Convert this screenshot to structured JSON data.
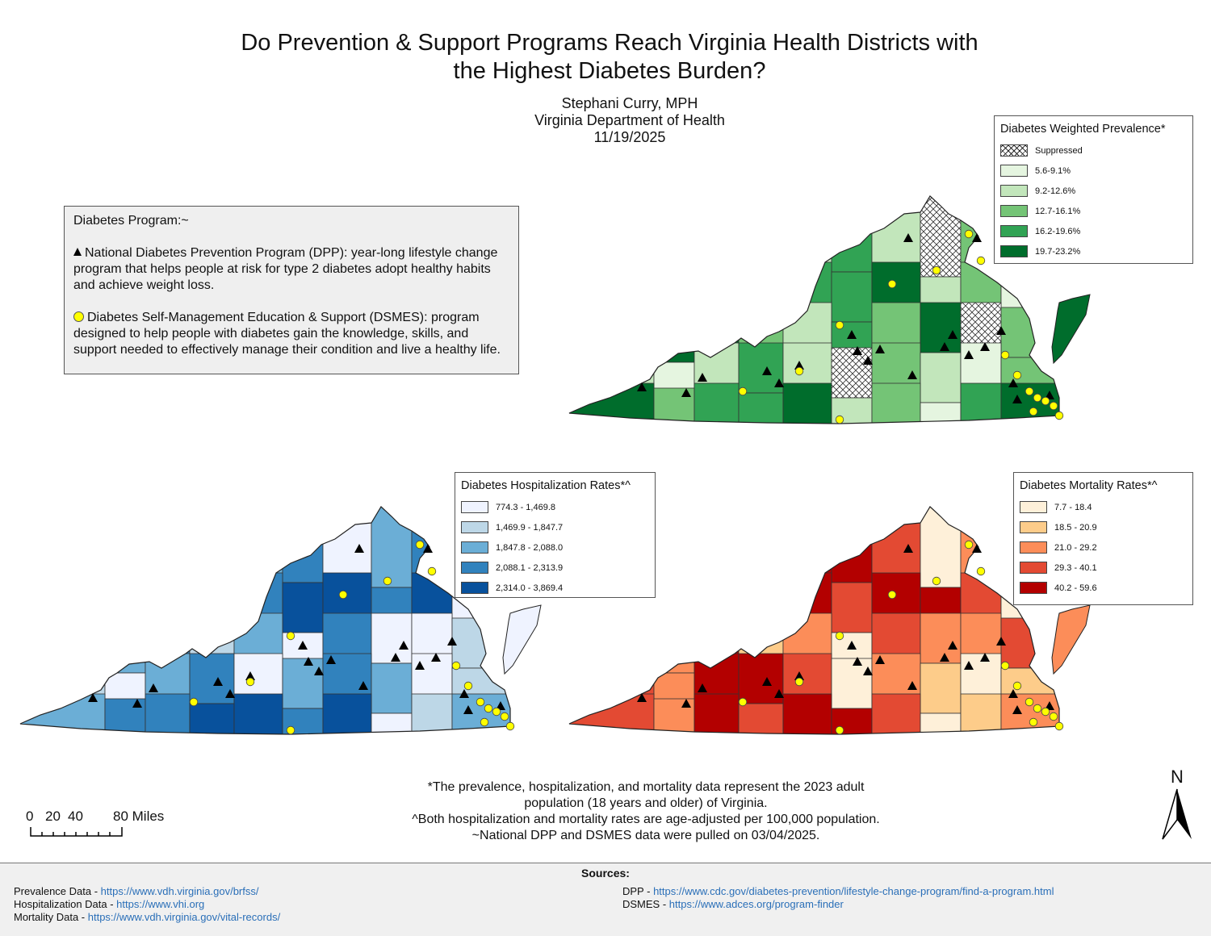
{
  "title": {
    "line1": "Do Prevention & Support Programs Reach Virginia Health Districts with",
    "line2": "the Highest Diabetes Burden?"
  },
  "author": {
    "name": "Stephani Curry, MPH",
    "org": "Virginia Department of Health",
    "date": "11/19/2025"
  },
  "program_box": {
    "title": "Diabetes Program:~",
    "dpp": "National Diabetes Prevention Program (DPP): year-long lifestyle change program that helps people at risk for type 2 diabetes adopt healthy habits and achieve weight loss.",
    "dsmes": "Diabetes Self-Management Education & Support (DSMES): program designed to help people with diabetes gain the knowledge, skills, and support needed to effectively manage their condition and live a healthy life."
  },
  "legends": {
    "prevalence": {
      "title": "Diabetes Weighted Prevalence*",
      "items": [
        {
          "label": "Suppressed",
          "color": "hatch"
        },
        {
          "label": "5.6-9.1%",
          "color": "#e5f5e0"
        },
        {
          "label": "9.2-12.6%",
          "color": "#c2e6bb"
        },
        {
          "label": "12.7-16.1%",
          "color": "#74c476"
        },
        {
          "label": "16.2-19.6%",
          "color": "#31a354"
        },
        {
          "label": "19.7-23.2%",
          "color": "#006d2c"
        }
      ]
    },
    "hospitalization": {
      "title": "Diabetes Hospitalization Rates*^",
      "items": [
        {
          "label": "774.3 - 1,469.8",
          "color": "#eff3ff"
        },
        {
          "label": "1,469.9 - 1,847.7",
          "color": "#bdd7e7"
        },
        {
          "label": "1,847.8 - 2,088.0",
          "color": "#6baed6"
        },
        {
          "label": "2,088.1 - 2,313.9",
          "color": "#3182bd"
        },
        {
          "label": "2,314.0 - 3,869.4",
          "color": "#08519c"
        }
      ]
    },
    "mortality": {
      "title": "Diabetes Mortality Rates*^",
      "items": [
        {
          "label": "7.7 - 18.4",
          "color": "#fef0d9"
        },
        {
          "label": "18.5 - 20.9",
          "color": "#fdcc8a"
        },
        {
          "label": "21.0 - 29.2",
          "color": "#fc8d59"
        },
        {
          "label": "29.3 - 40.1",
          "color": "#e34a33"
        },
        {
          "label": "40.2 - 59.6",
          "color": "#b30000"
        }
      ]
    }
  },
  "footnotes": {
    "line1": "*The prevalence, hospitalization, and mortality data represent the 2023 adult",
    "line2": "population (18 years and older) of Virginia.",
    "line3": "^Both hospitalization and mortality rates are age-adjusted per 100,000 population.",
    "line4": "~National DPP and DSMES data were pulled on 03/04/2025."
  },
  "scale": {
    "ticks": [
      "0",
      "20",
      "40",
      "80 Miles"
    ]
  },
  "north": {
    "label": "N"
  },
  "sources": {
    "heading": "Sources:",
    "prevalence": {
      "label": "Prevalence Data - ",
      "url": "https://www.vdh.virginia.gov/brfss/"
    },
    "hospitalization": {
      "label": "Hospitalization Data - ",
      "url": "https://www.vhi.org"
    },
    "mortality": {
      "label": "Mortality Data - ",
      "url": "https://www.vdh.virginia.gov/vital-records/"
    },
    "dpp": {
      "label": "DPP - ",
      "url": "https://www.cdc.gov/diabetes-prevention/lifestyle-change-program/find-a-program.html"
    },
    "dsmes": {
      "label": "DSMES - ",
      "url": "https://www.adces.org/program-finder"
    }
  },
  "maps": {
    "prevalence": {
      "classes": [
        0,
        3,
        2,
        1,
        2,
        4,
        2,
        0,
        3,
        2,
        1,
        3,
        5,
        3,
        4,
        4,
        5,
        2,
        3,
        1,
        4,
        5,
        5,
        3,
        2,
        4,
        3,
        5
      ]
    },
    "hospitalization": {
      "classes": [
        1,
        2,
        2,
        1,
        3,
        4,
        1,
        3,
        4,
        3,
        1,
        2,
        3,
        4,
        4,
        5,
        5,
        4,
        5,
        1,
        2,
        3,
        4,
        2,
        3,
        1,
        4,
        1
      ]
    },
    "mortality": {
      "classes": [
        3,
        4,
        4,
        3,
        5,
        5,
        4,
        1,
        3,
        2,
        1,
        2,
        4,
        3,
        5,
        4,
        5,
        5,
        4,
        1,
        2,
        3,
        5,
        2,
        3,
        1,
        4,
        3
      ]
    }
  }
}
